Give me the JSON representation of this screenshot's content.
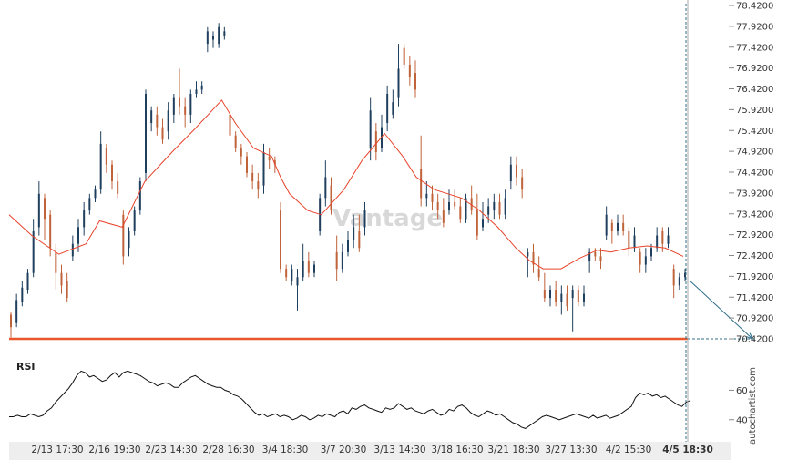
{
  "chart_data": {
    "type": "candlestick",
    "y_ticks": [
      "78.4200",
      "77.9200",
      "77.4200",
      "76.9200",
      "76.4200",
      "75.9200",
      "75.4200",
      "74.9200",
      "74.4200",
      "73.9200",
      "73.4200",
      "72.9200",
      "72.4200",
      "71.9200",
      "71.4200",
      "70.9200",
      "70.4200"
    ],
    "ylim": [
      70.17,
      78.45
    ],
    "x_labels": [
      "2/13 17:30",
      "2/16 19:30",
      "2/23 14:30",
      "2/28 16:30",
      "3/4 18:30",
      "3/7 20:30",
      "3/13 14:30",
      "3/18 16:30",
      "3/21 18:30",
      "3/27 13:30",
      "4/2 15:30",
      "4/5 18:30"
    ],
    "highlight_x_label": "4/5 18:30",
    "support_level": 70.42,
    "forecast": {
      "from": 71.8,
      "to": 70.42
    },
    "candles": [
      [
        71.0,
        70.7,
        71.05,
        70.45
      ],
      [
        70.8,
        71.35,
        71.5,
        70.7
      ],
      [
        71.3,
        71.65,
        71.8,
        71.2
      ],
      [
        71.6,
        72.0,
        72.1,
        71.5
      ],
      [
        72.0,
        73.0,
        73.3,
        71.9
      ],
      [
        73.1,
        73.9,
        74.2,
        72.9
      ],
      [
        73.8,
        73.3,
        73.9,
        72.8
      ],
      [
        73.4,
        72.6,
        73.5,
        72.4
      ],
      [
        72.5,
        72.0,
        72.7,
        71.6
      ],
      [
        72.0,
        71.7,
        72.2,
        71.5
      ],
      [
        71.8,
        71.4,
        72.0,
        71.3
      ],
      [
        72.4,
        72.7,
        72.9,
        72.3
      ],
      [
        72.7,
        73.1,
        73.3,
        72.5
      ],
      [
        73.1,
        73.5,
        73.7,
        72.9
      ],
      [
        73.5,
        73.8,
        73.9,
        73.4
      ],
      [
        73.8,
        74.0,
        74.1,
        73.7
      ],
      [
        74.0,
        75.1,
        75.4,
        73.9
      ],
      [
        75.0,
        74.6,
        75.1,
        74.4
      ],
      [
        74.6,
        74.2,
        74.7,
        74.0
      ],
      [
        74.2,
        73.9,
        74.4,
        73.8
      ],
      [
        73.4,
        72.4,
        73.5,
        72.2
      ],
      [
        72.6,
        73.0,
        73.1,
        72.4
      ],
      [
        73.0,
        73.5,
        73.6,
        72.9
      ],
      [
        73.5,
        74.2,
        74.3,
        73.4
      ],
      [
        74.4,
        76.3,
        76.4,
        74.2
      ],
      [
        75.6,
        75.9,
        76.0,
        75.4
      ],
      [
        75.8,
        75.5,
        76.0,
        75.3
      ],
      [
        75.5,
        75.2,
        75.7,
        75.1
      ],
      [
        75.4,
        75.9,
        76.1,
        75.2
      ],
      [
        75.8,
        76.2,
        76.3,
        75.6
      ],
      [
        76.2,
        76.0,
        76.9,
        75.8
      ],
      [
        76.0,
        75.8,
        76.2,
        75.5
      ],
      [
        75.8,
        76.3,
        76.4,
        75.6
      ],
      [
        76.3,
        76.4,
        76.6,
        76.2
      ],
      [
        76.4,
        76.5,
        76.6,
        76.3
      ],
      [
        77.5,
        77.8,
        77.9,
        77.3
      ],
      [
        77.6,
        77.7,
        77.8,
        77.4
      ],
      [
        77.5,
        77.9,
        78.0,
        77.4
      ],
      [
        77.7,
        77.8,
        77.9,
        77.6
      ],
      [
        75.8,
        75.3,
        75.9,
        75.1
      ],
      [
        75.3,
        75.0,
        75.4,
        74.9
      ],
      [
        75.0,
        74.8,
        75.1,
        74.6
      ],
      [
        74.8,
        74.4,
        74.9,
        74.3
      ],
      [
        74.4,
        74.2,
        74.6,
        74.0
      ],
      [
        74.2,
        74.0,
        74.4,
        73.8
      ],
      [
        74.1,
        74.9,
        75.1,
        73.9
      ],
      [
        74.8,
        74.7,
        75.0,
        74.5
      ],
      [
        74.7,
        74.6,
        74.8,
        74.4
      ],
      [
        73.5,
        72.1,
        73.7,
        72.0
      ],
      [
        72.1,
        71.9,
        72.2,
        71.8
      ],
      [
        71.8,
        72.1,
        72.2,
        71.7
      ],
      [
        71.7,
        71.9,
        72.1,
        71.1
      ],
      [
        71.9,
        72.3,
        72.7,
        71.8
      ],
      [
        72.3,
        72.0,
        72.5,
        71.9
      ],
      [
        72.0,
        72.2,
        72.3,
        71.9
      ],
      [
        73.0,
        73.8,
        73.9,
        72.9
      ],
      [
        73.8,
        74.3,
        74.7,
        73.6
      ],
      [
        74.1,
        73.5,
        74.3,
        73.4
      ],
      [
        72.5,
        72.1,
        72.9,
        71.8
      ],
      [
        72.1,
        72.5,
        72.7,
        72.0
      ],
      [
        72.5,
        72.8,
        73.0,
        72.4
      ],
      [
        72.8,
        73.1,
        73.4,
        72.6
      ],
      [
        73.0,
        72.6,
        73.4,
        72.5
      ],
      [
        73.1,
        73.5,
        73.7,
        72.9
      ],
      [
        75.0,
        75.9,
        76.2,
        74.7
      ],
      [
        75.4,
        74.9,
        75.6,
        74.7
      ],
      [
        75.0,
        75.5,
        75.8,
        74.9
      ],
      [
        75.6,
        76.3,
        76.5,
        75.4
      ],
      [
        75.8,
        76.1,
        76.4,
        75.7
      ],
      [
        76.2,
        76.9,
        77.5,
        76.0
      ],
      [
        77.4,
        77.0,
        77.5,
        76.9
      ],
      [
        77.0,
        76.7,
        77.2,
        76.5
      ],
      [
        76.8,
        76.4,
        77.1,
        76.2
      ],
      [
        74.5,
        73.8,
        75.3,
        73.6
      ],
      [
        73.8,
        73.9,
        74.2,
        73.6
      ],
      [
        73.9,
        73.7,
        74.1,
        73.5
      ],
      [
        73.7,
        73.5,
        73.9,
        73.3
      ],
      [
        73.5,
        73.2,
        73.8,
        73.1
      ],
      [
        73.5,
        73.7,
        74.0,
        73.4
      ],
      [
        73.7,
        73.6,
        74.0,
        73.5
      ],
      [
        73.6,
        73.3,
        73.8,
        73.2
      ],
      [
        73.3,
        73.8,
        73.9,
        73.2
      ],
      [
        73.8,
        73.5,
        74.1,
        73.4
      ],
      [
        73.5,
        72.9,
        73.9,
        72.8
      ],
      [
        73.1,
        73.3,
        73.7,
        73.0
      ],
      [
        73.4,
        73.6,
        73.8,
        73.2
      ],
      [
        73.5,
        73.7,
        73.9,
        73.3
      ],
      [
        73.7,
        73.4,
        73.9,
        73.3
      ],
      [
        73.4,
        73.8,
        74.0,
        73.3
      ],
      [
        74.2,
        74.6,
        74.8,
        74.0
      ],
      [
        74.6,
        74.3,
        74.8,
        74.1
      ],
      [
        74.3,
        74.0,
        74.5,
        73.8
      ],
      [
        72.4,
        72.5,
        72.6,
        71.9
      ],
      [
        72.5,
        72.2,
        72.7,
        72.0
      ],
      [
        72.1,
        71.9,
        72.4,
        71.8
      ],
      [
        71.6,
        71.4,
        72.0,
        71.3
      ],
      [
        71.4,
        71.6,
        71.7,
        71.2
      ],
      [
        71.6,
        71.3,
        71.8,
        71.2
      ],
      [
        71.3,
        71.5,
        71.7,
        71.0
      ],
      [
        71.5,
        71.2,
        71.7,
        71.1
      ],
      [
        71.4,
        71.6,
        71.7,
        70.6
      ],
      [
        71.6,
        71.3,
        71.7,
        71.2
      ],
      [
        71.3,
        71.5,
        71.7,
        71.2
      ],
      [
        72.3,
        72.5,
        72.6,
        72.0
      ],
      [
        72.5,
        72.4,
        72.6,
        72.3
      ],
      [
        72.4,
        72.3,
        72.6,
        72.1
      ],
      [
        72.9,
        73.4,
        73.6,
        72.8
      ],
      [
        73.2,
        73.0,
        73.3,
        72.7
      ],
      [
        73.0,
        73.2,
        73.4,
        72.9
      ],
      [
        73.2,
        73.0,
        73.4,
        72.9
      ],
      [
        73.0,
        72.6,
        73.1,
        72.4
      ],
      [
        72.6,
        72.9,
        73.1,
        72.5
      ],
      [
        72.5,
        72.2,
        72.6,
        72.0
      ],
      [
        72.2,
        72.4,
        72.6,
        72.0
      ],
      [
        72.4,
        72.6,
        72.7,
        72.3
      ],
      [
        72.6,
        72.9,
        73.1,
        72.5
      ],
      [
        73.0,
        72.7,
        73.1,
        72.5
      ],
      [
        72.7,
        72.9,
        73.1,
        72.6
      ],
      [
        72.1,
        71.7,
        72.2,
        71.4
      ],
      [
        71.7,
        71.9,
        72.0,
        71.6
      ],
      [
        71.9,
        72.0,
        72.1,
        71.8
      ]
    ],
    "moving_average": [
      [
        0,
        73.4
      ],
      [
        0.05,
        72.9
      ],
      [
        0.11,
        72.45
      ],
      [
        0.17,
        72.7
      ],
      [
        0.2,
        73.25
      ],
      [
        0.25,
        73.1
      ],
      [
        0.3,
        74.2
      ],
      [
        0.36,
        74.9
      ],
      [
        0.41,
        75.45
      ],
      [
        0.47,
        76.15
      ],
      [
        0.5,
        75.6
      ],
      [
        0.54,
        75.0
      ],
      [
        0.58,
        74.8
      ],
      [
        0.6,
        74.3
      ],
      [
        0.62,
        73.9
      ],
      [
        0.66,
        73.5
      ],
      [
        0.69,
        73.4
      ],
      [
        0.74,
        74.0
      ],
      [
        0.78,
        74.7
      ],
      [
        0.83,
        75.35
      ],
      [
        0.87,
        74.8
      ],
      [
        0.9,
        74.3
      ],
      [
        0.94,
        74.0
      ],
      [
        0.97,
        73.9
      ],
      [
        1.0,
        73.8
      ],
      [
        1.04,
        73.5
      ],
      [
        1.08,
        73.1
      ],
      [
        1.12,
        72.6
      ],
      [
        1.15,
        72.3
      ],
      [
        1.18,
        72.1
      ],
      [
        1.22,
        72.1
      ],
      [
        1.26,
        72.35
      ],
      [
        1.3,
        72.55
      ],
      [
        1.33,
        72.5
      ],
      [
        1.37,
        72.6
      ],
      [
        1.41,
        72.65
      ],
      [
        1.45,
        72.6
      ],
      [
        1.49,
        72.4
      ]
    ],
    "rsi_ticks": [
      "60",
      "40"
    ],
    "rsi_ylim": [
      25,
      85
    ],
    "rsi": [
      42,
      42,
      43,
      42,
      42,
      44,
      43,
      42,
      43,
      46,
      48,
      52,
      55,
      58,
      61,
      65,
      70,
      73,
      72,
      69,
      70,
      68,
      66,
      67,
      70,
      72,
      69,
      72,
      73,
      72,
      71,
      70,
      68,
      66,
      65,
      63,
      64,
      65,
      64,
      62,
      62,
      65,
      67,
      69,
      70,
      68,
      66,
      64,
      63,
      62,
      62,
      60,
      59,
      57,
      56,
      54,
      51,
      48,
      45,
      43,
      44,
      42,
      43,
      44,
      42,
      43,
      42,
      40,
      41,
      43,
      42,
      40,
      41,
      43,
      42,
      44,
      43,
      42,
      45,
      46,
      44,
      48,
      47,
      49,
      50,
      48,
      47,
      46,
      45,
      48,
      47,
      48,
      51,
      49,
      47,
      48,
      46,
      45,
      44,
      46,
      47,
      45,
      43,
      44,
      47,
      46,
      49,
      50,
      48,
      45,
      43,
      42,
      44,
      46,
      45,
      43,
      44,
      42,
      40,
      38,
      37,
      35,
      34,
      36,
      38,
      40,
      42,
      43,
      42,
      41,
      40,
      41,
      42,
      43,
      44,
      43,
      42,
      41,
      43,
      41,
      42,
      43,
      41,
      42,
      43,
      45,
      47,
      49,
      55,
      58,
      57,
      58,
      56,
      57,
      55,
      56,
      54,
      52,
      50,
      49,
      52,
      53
    ],
    "axes_color": "#aaaaaa",
    "up_color": "#1f3f5e",
    "down_color": "#c0633a",
    "ma_color": "#e8432a",
    "support_color": "#e8562a",
    "forecast_color": "#2f6f8a"
  },
  "rsi_label": "RSI",
  "watermark": "Vantage",
  "brand_text": "autochartist.com"
}
